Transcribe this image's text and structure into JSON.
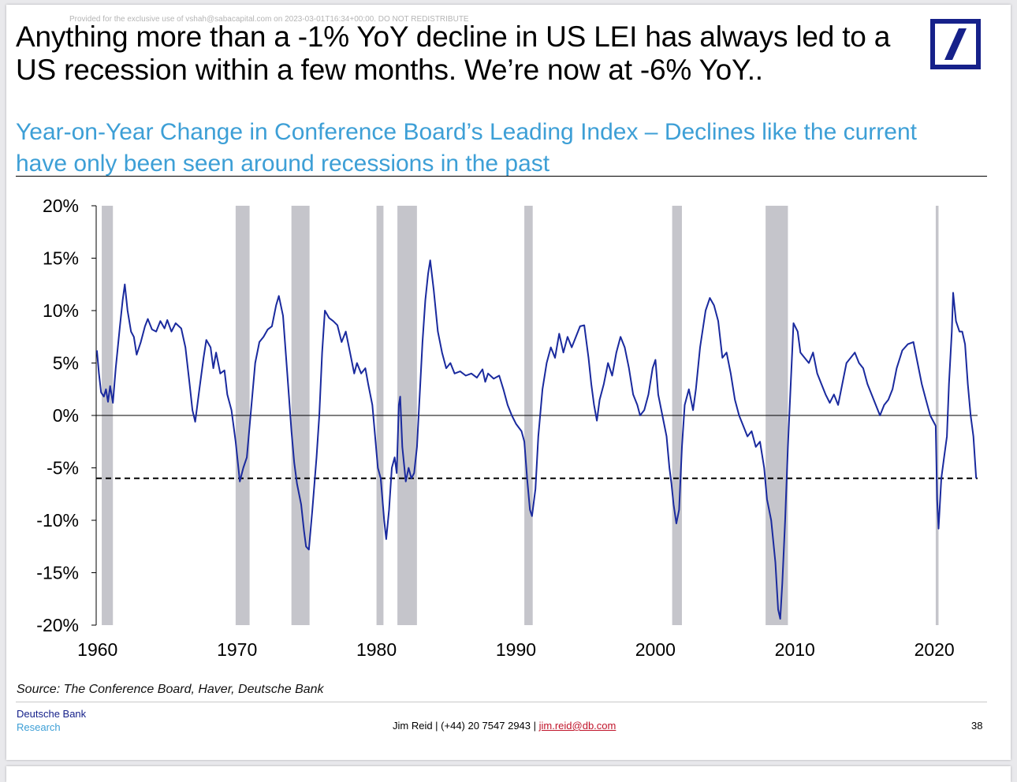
{
  "watermark": "Provided for the exclusive use of vshah@sabacapital.com on 2023-03-01T16:34+00:00. DO NOT REDISTRIBUTE",
  "headline": "Anything more than a -1% YoY decline in US LEI has always led to a US recession within a few months. We’re now at -6% YoY..",
  "logo_icon": "deutsche-bank-slash-logo",
  "colors": {
    "series": "#1a2a9e",
    "recession": "#c5c5cb",
    "subtitle": "#3d9fd6",
    "brand_dark": "#16218a",
    "link": "#c0142a"
  },
  "source": "Source: The Conference Board, Haver, Deutsche Bank",
  "footer": {
    "brand_line1": "Deutsche Bank",
    "brand_line2": "Research",
    "contact_prefix": "Jim Reid | (+44) 20 7547 2943 | ",
    "email": "jim.reid@db.com",
    "page": "38"
  },
  "chart_data": {
    "type": "line",
    "title": "Year-on-Year Change in Conference Board’s Leading Index – Declines like the current have only been seen around recessions in the past",
    "xlabel": "",
    "ylabel": "",
    "xlim": [
      1959.9,
      2023.1
    ],
    "ylim": [
      -20,
      20
    ],
    "x_ticks": [
      1960,
      1970,
      1980,
      1990,
      2000,
      2010,
      2020
    ],
    "y_ticks": [
      20,
      15,
      10,
      5,
      0,
      -5,
      -10,
      -15,
      -20
    ],
    "y_tick_labels": [
      "20%",
      "15%",
      "10%",
      "5%",
      "0%",
      "-5%",
      "-10%",
      "-15%",
      "-20%"
    ],
    "grid": false,
    "legend": "none",
    "reference_lines": [
      {
        "y": 0,
        "style": "solid"
      },
      {
        "y": -6,
        "style": "dashed"
      }
    ],
    "recessions": [
      [
        1960.3,
        1961.1
      ],
      [
        1969.9,
        1970.9
      ],
      [
        1973.9,
        1975.2
      ],
      [
        1980.0,
        1980.5
      ],
      [
        1981.5,
        1982.9
      ],
      [
        1990.6,
        1991.2
      ],
      [
        2001.2,
        2001.9
      ],
      [
        2007.9,
        2009.5
      ],
      [
        2020.1,
        2020.3
      ]
    ],
    "series": [
      {
        "name": "",
        "points": [
          [
            1959.95,
            6.2
          ],
          [
            1960.1,
            4.0
          ],
          [
            1960.25,
            2.2
          ],
          [
            1960.45,
            1.8
          ],
          [
            1960.6,
            2.5
          ],
          [
            1960.75,
            1.3
          ],
          [
            1960.9,
            2.8
          ],
          [
            1961.1,
            1.2
          ],
          [
            1961.3,
            4.5
          ],
          [
            1961.6,
            8.5
          ],
          [
            1961.8,
            11.0
          ],
          [
            1961.95,
            12.5
          ],
          [
            1962.15,
            10.0
          ],
          [
            1962.4,
            8.0
          ],
          [
            1962.6,
            7.5
          ],
          [
            1962.8,
            5.8
          ],
          [
            1963.1,
            7.0
          ],
          [
            1963.4,
            8.5
          ],
          [
            1963.6,
            9.2
          ],
          [
            1963.9,
            8.2
          ],
          [
            1964.2,
            8.0
          ],
          [
            1964.5,
            9.0
          ],
          [
            1964.8,
            8.3
          ],
          [
            1965.0,
            9.1
          ],
          [
            1965.3,
            8.0
          ],
          [
            1965.6,
            8.8
          ],
          [
            1966.0,
            8.3
          ],
          [
            1966.3,
            6.5
          ],
          [
            1966.6,
            3.0
          ],
          [
            1966.8,
            0.5
          ],
          [
            1967.0,
            -0.6
          ],
          [
            1967.3,
            2.5
          ],
          [
            1967.6,
            5.5
          ],
          [
            1967.8,
            7.2
          ],
          [
            1968.1,
            6.5
          ],
          [
            1968.3,
            4.5
          ],
          [
            1968.5,
            6.0
          ],
          [
            1968.8,
            4.0
          ],
          [
            1969.1,
            4.3
          ],
          [
            1969.3,
            2.0
          ],
          [
            1969.6,
            0.5
          ],
          [
            1969.9,
            -2.5
          ],
          [
            1970.1,
            -5.0
          ],
          [
            1970.2,
            -6.3
          ],
          [
            1970.45,
            -5.0
          ],
          [
            1970.7,
            -4.0
          ],
          [
            1971.0,
            0.5
          ],
          [
            1971.3,
            5.0
          ],
          [
            1971.6,
            7.0
          ],
          [
            1971.9,
            7.5
          ],
          [
            1972.2,
            8.2
          ],
          [
            1972.5,
            8.5
          ],
          [
            1972.8,
            10.5
          ],
          [
            1973.0,
            11.4
          ],
          [
            1973.3,
            9.5
          ],
          [
            1973.6,
            4.0
          ],
          [
            1973.9,
            -1.5
          ],
          [
            1974.1,
            -4.5
          ],
          [
            1974.3,
            -6.5
          ],
          [
            1974.6,
            -8.5
          ],
          [
            1974.8,
            -11.0
          ],
          [
            1974.95,
            -12.5
          ],
          [
            1975.15,
            -12.8
          ],
          [
            1975.4,
            -9.0
          ],
          [
            1975.7,
            -4.0
          ],
          [
            1975.9,
            0.0
          ],
          [
            1976.1,
            6.0
          ],
          [
            1976.3,
            10.0
          ],
          [
            1976.6,
            9.3
          ],
          [
            1976.9,
            9.0
          ],
          [
            1977.2,
            8.6
          ],
          [
            1977.5,
            7.0
          ],
          [
            1977.8,
            8.0
          ],
          [
            1978.1,
            6.0
          ],
          [
            1978.4,
            4.0
          ],
          [
            1978.6,
            5.0
          ],
          [
            1978.9,
            4.0
          ],
          [
            1979.2,
            4.5
          ],
          [
            1979.4,
            3.0
          ],
          [
            1979.7,
            1.0
          ],
          [
            1979.9,
            -2.0
          ],
          [
            1980.1,
            -5.0
          ],
          [
            1980.3,
            -6.0
          ],
          [
            1980.55,
            -10.0
          ],
          [
            1980.7,
            -11.8
          ],
          [
            1980.9,
            -9.0
          ],
          [
            1981.1,
            -5.0
          ],
          [
            1981.3,
            -4.0
          ],
          [
            1981.45,
            -5.5
          ],
          [
            1981.6,
            1.0
          ],
          [
            1981.7,
            1.8
          ],
          [
            1981.85,
            -3.0
          ],
          [
            1982.1,
            -6.3
          ],
          [
            1982.3,
            -5.0
          ],
          [
            1982.5,
            -6.0
          ],
          [
            1982.7,
            -5.5
          ],
          [
            1982.9,
            -3.0
          ],
          [
            1983.1,
            2.0
          ],
          [
            1983.3,
            7.0
          ],
          [
            1983.5,
            11.0
          ],
          [
            1983.7,
            13.5
          ],
          [
            1983.85,
            14.8
          ],
          [
            1984.1,
            12.0
          ],
          [
            1984.4,
            8.0
          ],
          [
            1984.7,
            6.0
          ],
          [
            1985.0,
            4.5
          ],
          [
            1985.3,
            5.0
          ],
          [
            1985.6,
            4.0
          ],
          [
            1986.0,
            4.2
          ],
          [
            1986.4,
            3.8
          ],
          [
            1986.8,
            4.0
          ],
          [
            1987.2,
            3.6
          ],
          [
            1987.6,
            4.4
          ],
          [
            1987.8,
            3.2
          ],
          [
            1988.0,
            4.0
          ],
          [
            1988.4,
            3.5
          ],
          [
            1988.8,
            3.8
          ],
          [
            1989.1,
            2.5
          ],
          [
            1989.4,
            1.0
          ],
          [
            1989.7,
            0.0
          ],
          [
            1990.0,
            -0.8
          ],
          [
            1990.4,
            -1.5
          ],
          [
            1990.6,
            -2.5
          ],
          [
            1990.8,
            -6.0
          ],
          [
            1991.0,
            -9.0
          ],
          [
            1991.15,
            -9.6
          ],
          [
            1991.4,
            -7.0
          ],
          [
            1991.6,
            -2.0
          ],
          [
            1991.9,
            2.5
          ],
          [
            1992.2,
            5.0
          ],
          [
            1992.5,
            6.5
          ],
          [
            1992.8,
            5.5
          ],
          [
            1993.1,
            7.8
          ],
          [
            1993.4,
            6.0
          ],
          [
            1993.7,
            7.5
          ],
          [
            1994.0,
            6.5
          ],
          [
            1994.3,
            7.5
          ],
          [
            1994.6,
            8.5
          ],
          [
            1994.9,
            8.6
          ],
          [
            1995.2,
            5.5
          ],
          [
            1995.4,
            3.0
          ],
          [
            1995.6,
            1.0
          ],
          [
            1995.8,
            -0.5
          ],
          [
            1996.0,
            1.5
          ],
          [
            1996.3,
            3.0
          ],
          [
            1996.6,
            5.0
          ],
          [
            1996.9,
            3.8
          ],
          [
            1997.2,
            6.0
          ],
          [
            1997.5,
            7.5
          ],
          [
            1997.8,
            6.5
          ],
          [
            1998.1,
            4.5
          ],
          [
            1998.4,
            2.0
          ],
          [
            1998.7,
            1.0
          ],
          [
            1998.9,
            0.0
          ],
          [
            1999.2,
            0.5
          ],
          [
            1999.5,
            2.0
          ],
          [
            1999.8,
            4.5
          ],
          [
            2000.0,
            5.3
          ],
          [
            2000.2,
            2.0
          ],
          [
            2000.5,
            0.0
          ],
          [
            2000.8,
            -2.0
          ],
          [
            2001.0,
            -5.0
          ],
          [
            2001.15,
            -6.5
          ],
          [
            2001.3,
            -8.5
          ],
          [
            2001.5,
            -10.3
          ],
          [
            2001.7,
            -9.0
          ],
          [
            2001.9,
            -3.0
          ],
          [
            2002.1,
            1.0
          ],
          [
            2002.4,
            2.5
          ],
          [
            2002.7,
            0.5
          ],
          [
            2002.9,
            2.5
          ],
          [
            2003.2,
            6.5
          ],
          [
            2003.6,
            10.0
          ],
          [
            2003.9,
            11.2
          ],
          [
            2004.2,
            10.5
          ],
          [
            2004.5,
            9.0
          ],
          [
            2004.8,
            5.5
          ],
          [
            2005.1,
            6.0
          ],
          [
            2005.4,
            4.0
          ],
          [
            2005.7,
            1.5
          ],
          [
            2006.0,
            0.0
          ],
          [
            2006.3,
            -1.0
          ],
          [
            2006.6,
            -2.0
          ],
          [
            2006.9,
            -1.5
          ],
          [
            2007.2,
            -3.0
          ],
          [
            2007.5,
            -2.5
          ],
          [
            2007.8,
            -5.0
          ],
          [
            2008.0,
            -8.0
          ],
          [
            2008.3,
            -10.0
          ],
          [
            2008.6,
            -14.0
          ],
          [
            2008.8,
            -18.5
          ],
          [
            2008.95,
            -19.4
          ],
          [
            2009.1,
            -16.0
          ],
          [
            2009.3,
            -10.0
          ],
          [
            2009.5,
            -3.0
          ],
          [
            2009.7,
            3.0
          ],
          [
            2009.9,
            8.8
          ],
          [
            2010.2,
            8.0
          ],
          [
            2010.4,
            6.0
          ],
          [
            2010.7,
            5.5
          ],
          [
            2011.0,
            5.0
          ],
          [
            2011.3,
            6.0
          ],
          [
            2011.6,
            4.0
          ],
          [
            2011.9,
            3.0
          ],
          [
            2012.2,
            2.0
          ],
          [
            2012.5,
            1.2
          ],
          [
            2012.8,
            2.0
          ],
          [
            2013.1,
            1.0
          ],
          [
            2013.4,
            3.0
          ],
          [
            2013.7,
            5.0
          ],
          [
            2014.0,
            5.5
          ],
          [
            2014.3,
            6.0
          ],
          [
            2014.6,
            5.0
          ],
          [
            2014.9,
            4.5
          ],
          [
            2015.2,
            3.0
          ],
          [
            2015.5,
            2.0
          ],
          [
            2015.8,
            1.0
          ],
          [
            2016.1,
            0.0
          ],
          [
            2016.4,
            1.0
          ],
          [
            2016.7,
            1.5
          ],
          [
            2017.0,
            2.5
          ],
          [
            2017.3,
            4.5
          ],
          [
            2017.7,
            6.2
          ],
          [
            2018.1,
            6.8
          ],
          [
            2018.5,
            7.0
          ],
          [
            2018.8,
            5.0
          ],
          [
            2019.1,
            3.0
          ],
          [
            2019.4,
            1.5
          ],
          [
            2019.7,
            0.0
          ],
          [
            2019.9,
            -0.5
          ],
          [
            2020.1,
            -1.0
          ],
          [
            2020.2,
            -8.0
          ],
          [
            2020.3,
            -10.8
          ],
          [
            2020.5,
            -6.0
          ],
          [
            2020.7,
            -4.0
          ],
          [
            2020.9,
            -2.0
          ],
          [
            2021.05,
            3.0
          ],
          [
            2021.25,
            8.0
          ],
          [
            2021.35,
            11.7
          ],
          [
            2021.55,
            9.0
          ],
          [
            2021.8,
            8.0
          ],
          [
            2022.0,
            8.0
          ],
          [
            2022.2,
            6.8
          ],
          [
            2022.4,
            3.0
          ],
          [
            2022.6,
            0.0
          ],
          [
            2022.8,
            -2.0
          ],
          [
            2023.0,
            -6.0
          ]
        ]
      }
    ]
  }
}
